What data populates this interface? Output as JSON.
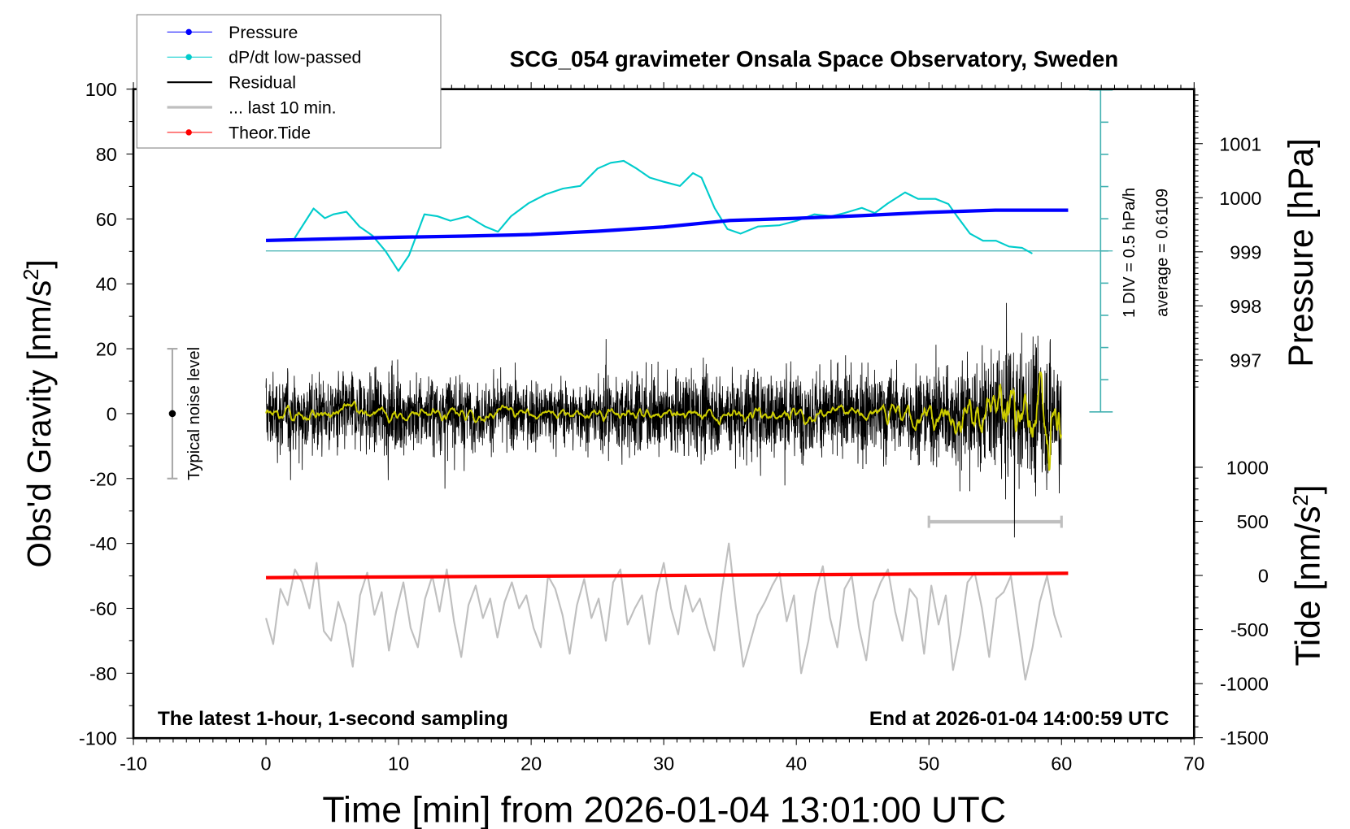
{
  "chart_data": {
    "type": "line",
    "title": "SCG_054 gravimeter Onsala Space Observatory, Sweden",
    "xlabel": "Time [min] from 2026-01-04 13:01:00 UTC",
    "ylabel": "Obs'd Gravity [nm/s",
    "ylabel_sup": "2",
    "ylabel_end": "]",
    "y2label": "Pressure [hPa]",
    "y3label": "Tide [nm/s",
    "y3label_sup": "2",
    "y3label_end": "]",
    "xlim": [
      -10,
      70
    ],
    "ylim": [
      -100,
      100
    ],
    "pressure_lim_labels": [
      997,
      1001
    ],
    "tide_lim": [
      -1500,
      1000
    ],
    "x_ticks": [
      "-10",
      "0",
      "10",
      "20",
      "30",
      "40",
      "50",
      "60",
      "70"
    ],
    "y_ticks": [
      "100",
      "80",
      "60",
      "40",
      "20",
      "0",
      "-20",
      "-40",
      "-60",
      "-80",
      "-100"
    ],
    "pressure_ticks": [
      "1001",
      "1000",
      "999",
      "998",
      "997"
    ],
    "tide_ticks": [
      "1000",
      "500",
      "0",
      "-500",
      "-1000",
      "-1500"
    ],
    "legend": {
      "placement": "top-left",
      "items": [
        {
          "label": "Pressure",
          "color": "#0000ff",
          "marker": "dot"
        },
        {
          "label": "dP/dt low-passed",
          "color": "#00cccc",
          "marker": "dot"
        },
        {
          "label": "Residual",
          "color": "#000000",
          "marker": "line"
        },
        {
          "label": "... last 10 min.",
          "color": "#bfbfbf",
          "marker": "line"
        },
        {
          "label": "Theor.Tide",
          "color": "#ff0000",
          "marker": "dot"
        }
      ]
    },
    "annotations": {
      "bottom_left": "The latest 1-hour, 1-second sampling",
      "bottom_right": "End at 2026-01-04 14:00:59 UTC",
      "noise_label": "Typical noise level",
      "noise_level": 20,
      "div_label": "1 DIV = 0.5 hPa/h",
      "average_label": "average = 0.6109",
      "dpdt_average": 0.6109,
      "dpdt_div": 0.5,
      "last10_window_min": [
        50,
        60
      ]
    },
    "series": [
      {
        "name": "Pressure",
        "unit": "hPa",
        "color": "#0000ff",
        "x": [
          0,
          5,
          10,
          15,
          20,
          25,
          30,
          35,
          40,
          45,
          50,
          55,
          60.5
        ],
        "y": [
          999.21,
          999.24,
          999.27,
          999.29,
          999.32,
          999.38,
          999.46,
          999.58,
          999.62,
          999.67,
          999.73,
          999.77,
          999.77
        ]
      },
      {
        "name": "dP/dt low-passed",
        "unit": "hPa/h",
        "color": "#00cccc",
        "x": [
          2.16,
          3.59,
          4.44,
          5.09,
          6.07,
          7.05,
          8.03,
          9.01,
          9.99,
          10.78,
          11.95,
          12.93,
          13.91,
          15.22,
          16.53,
          17.5,
          18.48,
          19.79,
          21.1,
          22.4,
          23.7,
          25.0,
          26.0,
          26.98,
          27.96,
          28.94,
          29.92,
          31.22,
          32.2,
          32.85,
          33.83,
          34.81,
          35.8,
          37.1,
          38.73,
          40.04,
          41.35,
          42.65,
          43.63,
          44.94,
          45.92,
          46.9,
          48.2,
          49.18,
          50.49,
          51.47,
          52.12,
          53.1,
          54.08,
          55.06,
          56.04,
          57.02,
          57.8
        ],
        "y": [
          0.81,
          1.27,
          1.12,
          1.18,
          1.22,
          0.99,
          0.85,
          0.61,
          0.3,
          0.54,
          1.18,
          1.15,
          1.08,
          1.15,
          0.99,
          0.91,
          1.15,
          1.35,
          1.49,
          1.58,
          1.62,
          1.89,
          1.98,
          2.01,
          1.89,
          1.75,
          1.69,
          1.62,
          1.82,
          1.75,
          1.28,
          0.95,
          0.88,
          0.99,
          1.01,
          1.08,
          1.18,
          1.15,
          1.2,
          1.28,
          1.2,
          1.35,
          1.52,
          1.42,
          1.42,
          1.34,
          1.15,
          0.88,
          0.77,
          0.77,
          0.68,
          0.66,
          0.57
        ]
      },
      {
        "name": "Residual",
        "unit": "nm/s2",
        "color": "#000000",
        "sampling_s": 1,
        "std_per_5min": [
          6,
          6,
          6,
          5,
          5,
          6,
          6,
          7,
          6,
          7,
          8,
          10
        ]
      },
      {
        "name": "Residual low-passed",
        "unit": "nm/s2",
        "color": "#cccc00"
      },
      {
        "name": "... last 10 min.",
        "unit": "nm/s2",
        "color": "#bfbfbf",
        "x_range": [
          0,
          60
        ],
        "y": [
          -63,
          -71,
          -54,
          -59,
          -48,
          -52,
          -60,
          -46,
          -67,
          -70,
          -58,
          -65,
          -78,
          -56,
          -49,
          -62,
          -55,
          -73,
          -61,
          -52,
          -66,
          -72,
          -57,
          -50,
          -61,
          -48,
          -64,
          -75,
          -59,
          -53,
          -63,
          -57,
          -69,
          -58,
          -52,
          -60,
          -56,
          -66,
          -72,
          -50,
          -54,
          -62,
          -74,
          -59,
          -51,
          -63,
          -57,
          -70,
          -52,
          -48,
          -65,
          -60,
          -56,
          -71,
          -55,
          -46,
          -60,
          -68,
          -53,
          -61,
          -57,
          -66,
          -73,
          -55,
          -40,
          -60,
          -78,
          -70,
          -62,
          -58,
          -53,
          -49,
          -64,
          -56,
          -80,
          -70,
          -55,
          -47,
          -63,
          -72,
          -54,
          -50,
          -66,
          -76,
          -58,
          -52,
          -48,
          -61,
          -70,
          -54,
          -57,
          -74,
          -53,
          -65,
          -56,
          -79,
          -68,
          -52,
          -49,
          -60,
          -75,
          -57,
          -55,
          -50,
          -66,
          -82,
          -72,
          -58,
          -50,
          -62,
          -69
        ]
      },
      {
        "name": "Theor.Tide",
        "unit": "nm/s2",
        "color": "#ff0000",
        "x": [
          0,
          60.5
        ],
        "y": [
          -20,
          20
        ]
      }
    ]
  }
}
